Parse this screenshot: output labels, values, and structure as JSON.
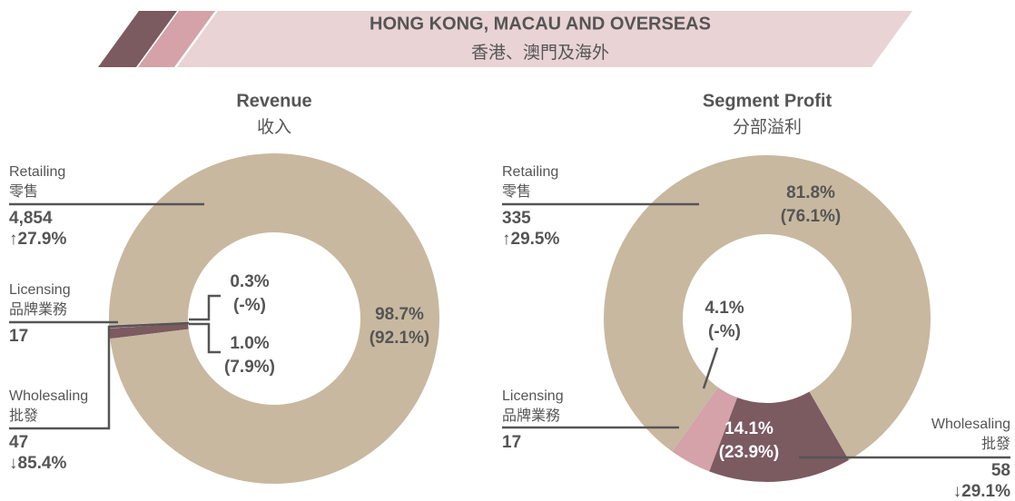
{
  "header": {
    "title": "HONG KONG, MACAU AND OVERSEAS",
    "subtitle": "香港、澳門及海外"
  },
  "chart_data": [
    {
      "type": "pie",
      "title": "Revenue",
      "subtitle": "收入",
      "categories": [
        "Wholesaling",
        "Licensing",
        "Retailing"
      ],
      "categories_zh": [
        "批發",
        "品牌業務",
        "零售"
      ],
      "values": [
        1.0,
        0.3,
        98.7
      ],
      "value_labels": [
        "1.0%",
        "0.3%",
        "98.7%"
      ],
      "prior_value_labels": [
        "(7.9%)",
        "(-%)",
        "(92.1%)"
      ],
      "amount_labels": [
        "47",
        "17",
        "4,854"
      ],
      "change_labels": [
        "↓85.4%",
        null,
        "↑27.9%"
      ],
      "colors": [
        "#7b5a60",
        "#d4a2a8",
        "#c8b8a0"
      ]
    },
    {
      "type": "pie",
      "title": "Segment Profit",
      "subtitle": "分部溢利",
      "categories": [
        "Wholesaling",
        "Licensing",
        "Retailing"
      ],
      "categories_zh": [
        "批發",
        "品牌業務",
        "零售"
      ],
      "values": [
        14.1,
        4.1,
        81.8
      ],
      "value_labels": [
        "14.1%",
        "4.1%",
        "81.8%"
      ],
      "prior_value_labels": [
        "(23.9%)",
        "(-%)",
        "(76.1%)"
      ],
      "amount_labels": [
        "58",
        "17",
        "335"
      ],
      "change_labels": [
        "↓29.1%",
        null,
        "↑29.5%"
      ],
      "colors": [
        "#7b5a60",
        "#d4a2a8",
        "#c8b8a0"
      ]
    }
  ]
}
